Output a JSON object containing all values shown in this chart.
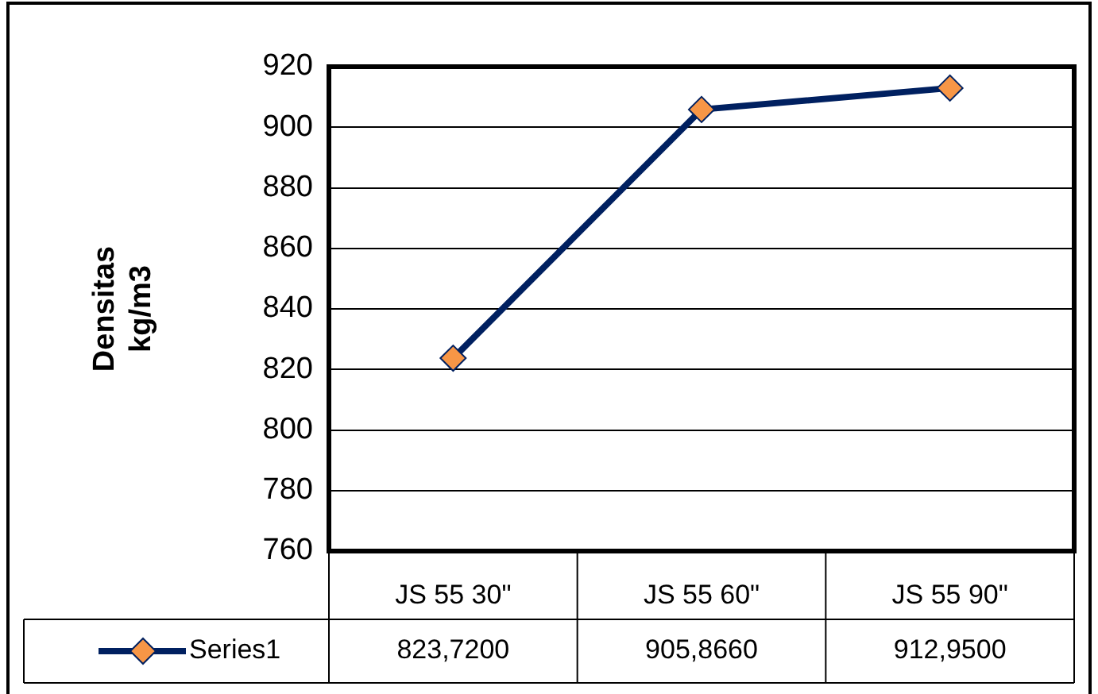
{
  "chart_data": {
    "type": "line",
    "ylabel": "Densitas\nkg/m3",
    "categories": [
      "JS 55 30\"",
      "JS 55 60\"",
      "JS 55 90\""
    ],
    "series": [
      {
        "name": "Series1",
        "color": "#002060",
        "values": [
          823.72,
          905.866,
          912.95
        ],
        "value_labels": [
          "823,7200",
          "905,8660",
          "912,9500"
        ]
      }
    ],
    "marker": "diamond",
    "ylim": [
      760,
      920
    ],
    "yticks": [
      760,
      780,
      800,
      820,
      840,
      860,
      880,
      900,
      920
    ],
    "grid": "y",
    "legend": "bottom"
  }
}
